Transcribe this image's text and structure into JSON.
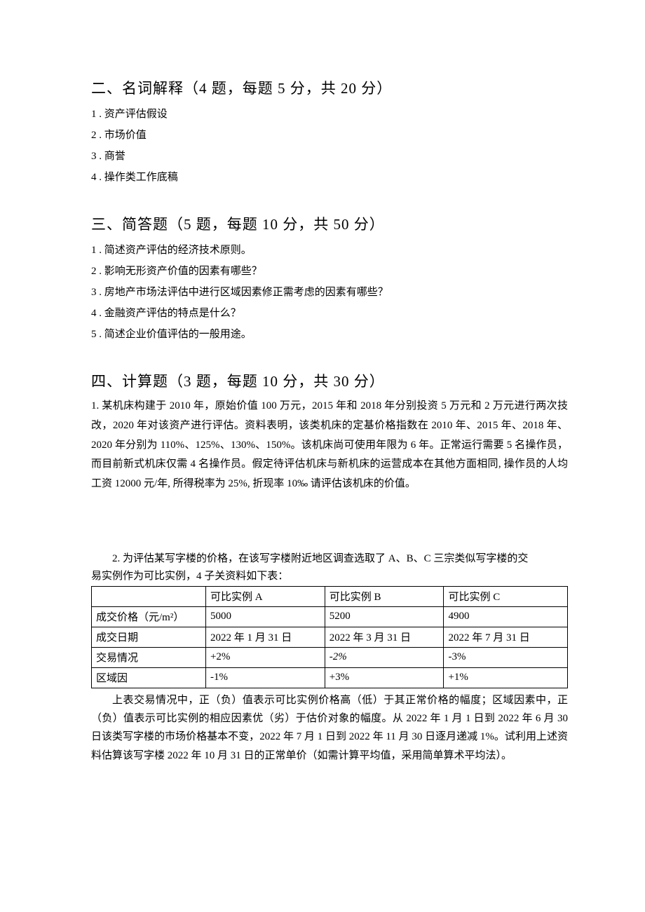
{
  "section2": {
    "heading": "二、名词解释（4 题，每题 5 分，共 20 分）",
    "items": [
      "1 . 资产评估假设",
      "2  . 市场价值",
      "3  . 商誉",
      "4  . 操作类工作底稿"
    ]
  },
  "section3": {
    "heading": "三、简答题（5 题，每题 10 分，共 50 分）",
    "items": [
      "1 . 简述资产评估的经济技术原则。",
      "2  . 影响无形资产价值的因素有哪些？",
      "3  . 房地产市场法评估中进行区域因素修正需考虑的因素有哪些？",
      "4  . 金融资产评估的特点是什么？",
      "5  . 简述企业价值评估的一般用途。"
    ]
  },
  "section4": {
    "heading": "四、计算题（3 题，每题 10 分，共 30 分）",
    "q1": "1. 某机床构建于 2010 年，原始价值 100 万元，2015 年和 2018 年分别投资 5 万元和 2 万元进行两次技改，2020 年对该资产进行评估。资料表明，该类机床的定基价格指数在 2010 年、2015 年、2018 年、2020 年分别为 110%、125%、130%、150%。该机床尚可使用年限为 6 年。正常运行需要 5 名操作员，而目前新式机床仅需 4 名操作员。假定待评估机床与新机床的运营成本在其他方面相同, 操作员的人均工资 12000 元/年, 所得税率为 25%, 折现率 10‰ 请评估该机床的价值。",
    "q2_intro_line1": "2. 为评估某写字楼的价格，在该写字楼附近地区调查选取了 A、B、C 三宗类似写字楼的交",
    "q2_intro_line2": "易实例作为可比实例，4 子关资料如下表：",
    "table": {
      "columns": [
        "",
        "可比实例 A",
        "可比实例 B",
        "可比实例 C"
      ],
      "rows": [
        [
          "成交价格（元/m²）",
          "5000",
          "5200",
          "4900"
        ],
        [
          "成交日期",
          "2022 年 1 月 31 日",
          "2022 年 3 月 31 日",
          "2022 年 7 月 31 日"
        ],
        [
          "交易情况",
          "+2%",
          "-2%",
          "-3%"
        ],
        [
          "区域因",
          "-1%",
          "+3%",
          "+1%"
        ]
      ],
      "italic_cell": {
        "row": 2,
        "col": 2
      }
    },
    "q2_post": "上表交易情况中，正（负）值表示可比实例价格高（低）于其正常价格的幅度；区域因素中，正（负）值表示可比实例的相应因素优（劣）于估价对象的幅度。从 2022 年 1 月 1 日到 2022 年 6 月 30 日该类写字楼的市场价格基本不变，2022 年 7 月 1 日到 2022 年 11 月 30 日逐月递减 1%。试利用上述资料估算该写字楼 2022 年 10 月 31 日的正常单价（如需计算平均值，采用简单算术平均法）。"
  }
}
